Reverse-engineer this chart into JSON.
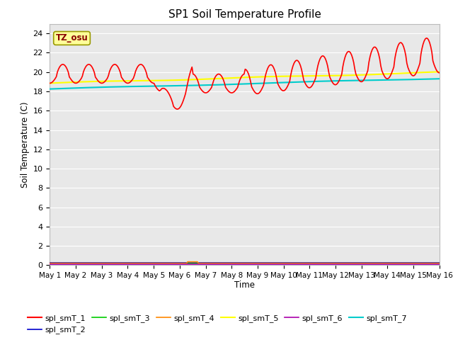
{
  "title": "SP1 Soil Temperature Profile",
  "xlabel": "Time",
  "ylabel": "Soil Temperature (C)",
  "annotation": "TZ_osu",
  "annotation_color": "#880000",
  "annotation_bg": "#ffff99",
  "annotation_border": "#999900",
  "ylim": [
    0,
    25
  ],
  "yticks": [
    0,
    2,
    4,
    6,
    8,
    10,
    12,
    14,
    16,
    18,
    20,
    22,
    24
  ],
  "bg_color": "#e8e8e8",
  "fig_color": "#ffffff",
  "series": {
    "spl_smT_1": {
      "color": "#ff0000",
      "linewidth": 1.2
    },
    "spl_smT_2": {
      "color": "#0000cc",
      "linewidth": 1.2
    },
    "spl_smT_3": {
      "color": "#00cc00",
      "linewidth": 1.2
    },
    "spl_smT_4": {
      "color": "#ff8800",
      "linewidth": 1.2
    },
    "spl_smT_5": {
      "color": "#ffff00",
      "linewidth": 1.5
    },
    "spl_smT_6": {
      "color": "#aa00aa",
      "linewidth": 1.2
    },
    "spl_smT_7": {
      "color": "#00cccc",
      "linewidth": 1.5
    }
  }
}
